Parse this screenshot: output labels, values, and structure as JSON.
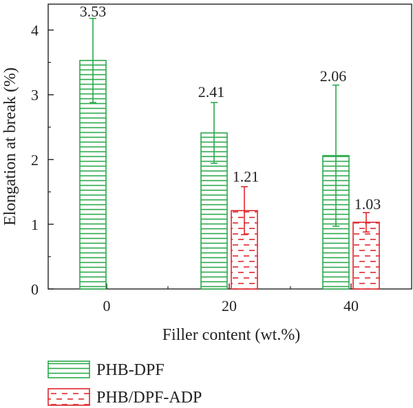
{
  "chart_data": {
    "type": "bar",
    "categories": [
      "0",
      "20",
      "40"
    ],
    "series": [
      {
        "name": "PHB-DPF",
        "values": [
          3.53,
          2.41,
          2.06
        ],
        "errors": [
          0.65,
          0.47,
          1.09
        ],
        "labels": [
          "3.53",
          "2.41",
          "2.06"
        ],
        "color": "#2aa84a",
        "pattern": "horizontal-lines"
      },
      {
        "name": "PHB/DPF-ADP",
        "values": [
          null,
          1.21,
          1.03
        ],
        "errors": [
          null,
          0.37,
          0.15
        ],
        "labels": [
          "",
          "1.21",
          "1.03"
        ],
        "color": "#e0262b",
        "pattern": "dashes"
      }
    ],
    "xlabel": "Filler content (wt.%)",
    "ylabel": "Elongation at break (%)",
    "ylim": [
      0,
      4.4
    ],
    "yticks": [
      "0",
      "1",
      "2",
      "3",
      "4"
    ],
    "legend_position": "bottom-left",
    "grid": false
  }
}
